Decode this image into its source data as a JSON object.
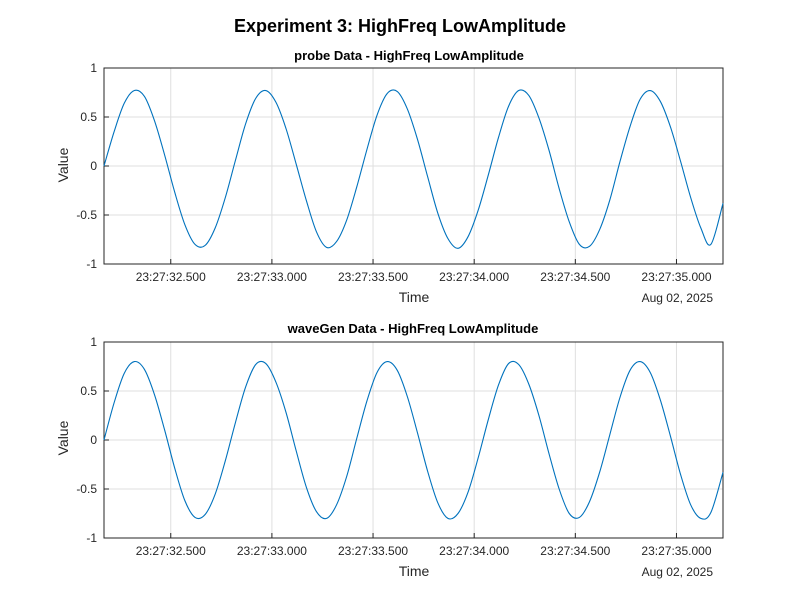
{
  "figure": {
    "suptitle": "Experiment 3: HighFreq LowAmplitude"
  },
  "chart_data": [
    {
      "type": "line",
      "title": "probe Data - HighFreq LowAmplitude",
      "xlabel": "Time",
      "ylabel": "Value",
      "date_label": "Aug 02, 2025",
      "xlim": [
        "2025-08-02 23:27:32.170",
        "2025-08-02 23:27:35.230"
      ],
      "ylim": [
        -1,
        1
      ],
      "xticks": [
        "23:27:32.500",
        "23:27:33.000",
        "23:27:33.500",
        "23:27:34.000",
        "23:27:34.500",
        "23:27:35.000"
      ],
      "yticks": [
        "-1",
        "-0.5",
        "0",
        "0.5",
        "1"
      ],
      "grid": true,
      "series": [
        {
          "color": "#0072bd",
          "x": [
            "2025-08-02 23:27:32.170",
            "23:27:32.220",
            "23:27:32.270",
            "23:27:32.320",
            "23:27:32.370",
            "23:27:32.420",
            "23:27:32.470",
            "23:27:32.520",
            "23:27:32.570",
            "23:27:32.620",
            "23:27:32.670",
            "23:27:32.720",
            "23:27:32.770",
            "23:27:32.820",
            "23:27:32.870",
            "23:27:32.920",
            "23:27:32.970",
            "23:27:33.020",
            "23:27:33.070",
            "23:27:33.120",
            "23:27:33.170",
            "23:27:33.220",
            "23:27:33.270",
            "23:27:33.320",
            "23:27:33.370",
            "23:27:33.420",
            "23:27:33.470",
            "23:27:33.520",
            "23:27:33.570",
            "23:27:33.620",
            "23:27:33.670",
            "23:27:33.720",
            "23:27:33.770",
            "23:27:33.820",
            "23:27:33.870",
            "23:27:33.920",
            "23:27:33.970",
            "23:27:34.020",
            "23:27:34.070",
            "23:27:34.120",
            "23:27:34.170",
            "23:27:34.220",
            "23:27:34.270",
            "23:27:34.320",
            "23:27:34.370",
            "23:27:34.420",
            "23:27:34.470",
            "23:27:34.520",
            "23:27:34.570",
            "23:27:34.620",
            "23:27:34.670",
            "23:27:34.720",
            "23:27:34.770",
            "23:27:34.820",
            "23:27:34.870",
            "23:27:34.920",
            "23:27:34.970",
            "23:27:35.020",
            "23:27:35.070",
            "23:27:35.120",
            "23:27:35.170",
            "23:27:35.230"
          ],
          "y": [
            0.0,
            0.35,
            0.64,
            0.77,
            0.71,
            0.46,
            0.11,
            -0.27,
            -0.6,
            -0.8,
            -0.81,
            -0.63,
            -0.32,
            0.06,
            0.43,
            0.69,
            0.77,
            0.65,
            0.38,
            0.02,
            -0.35,
            -0.67,
            -0.83,
            -0.77,
            -0.55,
            -0.21,
            0.17,
            0.52,
            0.74,
            0.76,
            0.58,
            0.27,
            -0.11,
            -0.48,
            -0.74,
            -0.84,
            -0.72,
            -0.45,
            -0.09,
            0.29,
            0.61,
            0.77,
            0.72,
            0.49,
            0.16,
            -0.23,
            -0.57,
            -0.8,
            -0.82,
            -0.65,
            -0.35,
            0.04,
            0.4,
            0.68,
            0.77,
            0.66,
            0.4,
            0.05,
            -0.32,
            -0.63,
            -0.8,
            -0.38
          ]
        }
      ]
    },
    {
      "type": "line",
      "title": "waveGen Data - HighFreq LowAmplitude",
      "xlabel": "Time",
      "ylabel": "Value",
      "date_label": "Aug 02, 2025",
      "xlim": [
        "2025-08-02 23:27:32.170",
        "2025-08-02 23:27:35.230"
      ],
      "ylim": [
        -1,
        1
      ],
      "xticks": [
        "23:27:32.500",
        "23:27:33.000",
        "23:27:33.500",
        "23:27:34.000",
        "23:27:34.500",
        "23:27:35.000"
      ],
      "yticks": [
        "-1",
        "-0.5",
        "0",
        "0.5",
        "1"
      ],
      "grid": true,
      "series": [
        {
          "color": "#0072bd",
          "x": [
            "2025-08-02 23:27:32.170",
            "23:27:32.220",
            "23:27:32.270",
            "23:27:32.320",
            "23:27:32.370",
            "23:27:32.420",
            "23:27:32.470",
            "23:27:32.520",
            "23:27:32.570",
            "23:27:32.620",
            "23:27:32.670",
            "23:27:32.720",
            "23:27:32.770",
            "23:27:32.820",
            "23:27:32.870",
            "23:27:32.920",
            "23:27:32.970",
            "23:27:33.020",
            "23:27:33.070",
            "23:27:33.120",
            "23:27:33.170",
            "23:27:33.220",
            "23:27:33.270",
            "23:27:33.320",
            "23:27:33.370",
            "23:27:33.420",
            "23:27:33.470",
            "23:27:33.520",
            "23:27:33.570",
            "23:27:33.620",
            "23:27:33.670",
            "23:27:33.720",
            "23:27:33.770",
            "23:27:33.820",
            "23:27:33.870",
            "23:27:33.920",
            "23:27:33.970",
            "23:27:34.020",
            "23:27:34.070",
            "23:27:34.120",
            "23:27:34.170",
            "23:27:34.220",
            "23:27:34.270",
            "23:27:34.320",
            "23:27:34.370",
            "23:27:34.420",
            "23:27:34.470",
            "23:27:34.520",
            "23:27:34.570",
            "23:27:34.620",
            "23:27:34.670",
            "23:27:34.720",
            "23:27:34.770",
            "23:27:34.820",
            "23:27:34.870",
            "23:27:34.920",
            "23:27:34.970",
            "23:27:35.020",
            "23:27:35.070",
            "23:27:35.120",
            "23:27:35.170",
            "23:27:35.230"
          ],
          "y": [
            0.0,
            0.38,
            0.68,
            0.8,
            0.72,
            0.46,
            0.1,
            -0.29,
            -0.62,
            -0.79,
            -0.76,
            -0.55,
            -0.21,
            0.18,
            0.54,
            0.77,
            0.78,
            0.59,
            0.28,
            -0.11,
            -0.48,
            -0.73,
            -0.8,
            -0.66,
            -0.37,
            0.02,
            0.4,
            0.69,
            0.8,
            0.71,
            0.44,
            0.07,
            -0.32,
            -0.64,
            -0.8,
            -0.75,
            -0.53,
            -0.18,
            0.21,
            0.56,
            0.78,
            0.77,
            0.57,
            0.25,
            -0.14,
            -0.5,
            -0.75,
            -0.79,
            -0.63,
            -0.33,
            0.05,
            0.43,
            0.71,
            0.8,
            0.69,
            0.41,
            0.04,
            -0.35,
            -0.66,
            -0.8,
            -0.74,
            -0.33
          ]
        }
      ]
    }
  ]
}
